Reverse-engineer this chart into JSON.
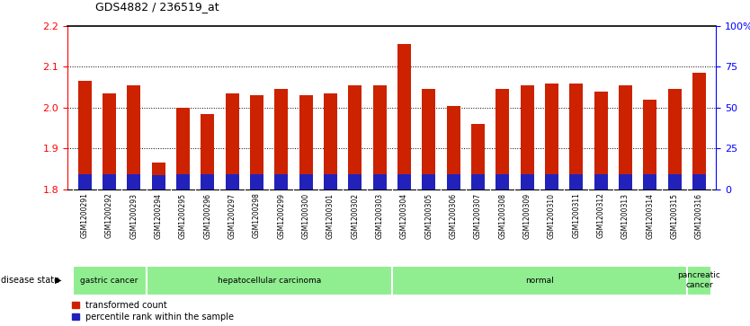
{
  "title": "GDS4882 / 236519_at",
  "samples": [
    "GSM1200291",
    "GSM1200292",
    "GSM1200293",
    "GSM1200294",
    "GSM1200295",
    "GSM1200296",
    "GSM1200297",
    "GSM1200298",
    "GSM1200299",
    "GSM1200300",
    "GSM1200301",
    "GSM1200302",
    "GSM1200303",
    "GSM1200304",
    "GSM1200305",
    "GSM1200306",
    "GSM1200307",
    "GSM1200308",
    "GSM1200309",
    "GSM1200310",
    "GSM1200311",
    "GSM1200312",
    "GSM1200313",
    "GSM1200314",
    "GSM1200315",
    "GSM1200316"
  ],
  "red_values": [
    2.065,
    2.035,
    2.055,
    1.865,
    2.0,
    1.985,
    2.035,
    2.03,
    2.045,
    2.03,
    2.035,
    2.055,
    2.055,
    2.155,
    2.045,
    2.005,
    1.96,
    2.045,
    2.055,
    2.06,
    2.06,
    2.04,
    2.055,
    2.02,
    2.045,
    2.085
  ],
  "blue_top": [
    1.8365,
    1.8355,
    1.836,
    1.835,
    1.836,
    1.836,
    1.836,
    1.836,
    1.836,
    1.836,
    1.836,
    1.836,
    1.836,
    1.837,
    1.836,
    1.836,
    1.836,
    1.836,
    1.836,
    1.836,
    1.836,
    1.836,
    1.836,
    1.836,
    1.836,
    1.836
  ],
  "ymin": 1.8,
  "ymax": 2.2,
  "yticks_left": [
    1.8,
    1.9,
    2.0,
    2.1,
    2.2
  ],
  "yticks_right": [
    0,
    25,
    50,
    75,
    100
  ],
  "groups": [
    {
      "label": "gastric cancer",
      "start": 0,
      "end": 3
    },
    {
      "label": "hepatocellular carcinoma",
      "start": 3,
      "end": 13
    },
    {
      "label": "normal",
      "start": 13,
      "end": 25
    },
    {
      "label": "pancreatic\ncancer",
      "start": 25,
      "end": 26
    }
  ],
  "bar_color_red": "#CC2200",
  "bar_color_blue": "#2222BB",
  "group_color": "#90EE90",
  "bar_width": 0.55
}
